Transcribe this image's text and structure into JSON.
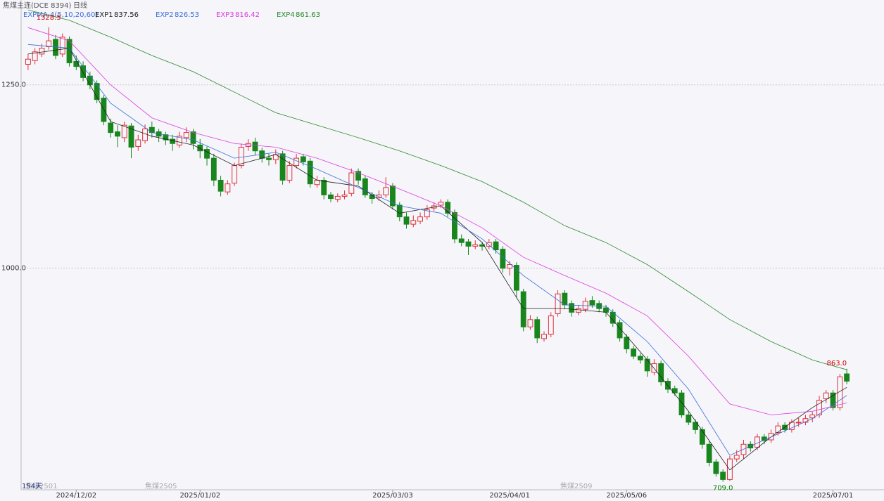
{
  "chart_data": {
    "type": "candlestick",
    "title": "焦煤主连(DCE 8394)",
    "period": "日线",
    "indicator": "EXPMA-4(5,10,20,60)",
    "up_color": "#e0303a",
    "down_color": "#18861c",
    "ylim": [
      698,
      1358
    ],
    "yticks": [
      {
        "value": 1250,
        "label": "1250.0"
      },
      {
        "value": 1000,
        "label": "1000.0"
      }
    ],
    "grid": true,
    "high_label": "1328.5",
    "low_label": "709.0",
    "last_high_label": "863.0",
    "contracts": [
      "焦煤2501",
      "焦煤2505",
      "焦煤2509"
    ],
    "day_count": "154天",
    "categories": [
      null,
      null,
      null,
      null,
      null,
      null,
      null,
      "2024/12/02",
      null,
      null,
      null,
      null,
      null,
      null,
      null,
      null,
      null,
      null,
      null,
      null,
      null,
      null,
      null,
      null,
      null,
      "2025/01/02",
      null,
      null,
      null,
      null,
      null,
      null,
      null,
      null,
      null,
      null,
      null,
      null,
      null,
      null,
      null,
      null,
      null,
      null,
      null,
      null,
      null,
      null,
      null,
      null,
      null,
      null,
      null,
      "2025/03/03",
      null,
      null,
      null,
      null,
      null,
      null,
      null,
      null,
      null,
      null,
      null,
      null,
      null,
      null,
      null,
      null,
      "2025/04/01",
      null,
      null,
      null,
      null,
      null,
      null,
      null,
      null,
      null,
      null,
      null,
      null,
      null,
      null,
      null,
      null,
      "2025/05/06",
      null,
      null,
      null,
      null,
      null,
      null,
      null,
      null,
      null,
      null,
      null,
      null,
      null,
      null,
      null,
      null,
      null,
      null,
      null,
      null,
      null,
      null,
      null,
      null,
      null,
      null,
      null,
      null,
      null,
      "2025/07/01",
      null,
      null
    ],
    "candles": [
      [
        1278,
        1292,
        1270,
        1285
      ],
      [
        1283,
        1300,
        1278,
        1295
      ],
      [
        1292,
        1306,
        1288,
        1300
      ],
      [
        1302,
        1328.5,
        1298,
        1310
      ],
      [
        1312,
        1318,
        1285,
        1290
      ],
      [
        1292,
        1320,
        1288,
        1315
      ],
      [
        1312,
        1316,
        1275,
        1280
      ],
      [
        1282,
        1290,
        1270,
        1275
      ],
      [
        1276,
        1282,
        1255,
        1260
      ],
      [
        1262,
        1268,
        1244,
        1250
      ],
      [
        1252,
        1256,
        1225,
        1230
      ],
      [
        1232,
        1236,
        1195,
        1200
      ],
      [
        1198,
        1204,
        1178,
        1185
      ],
      [
        1186,
        1195,
        1165,
        1180
      ],
      [
        1178,
        1200,
        1172,
        1195
      ],
      [
        1194,
        1198,
        1150,
        1165
      ],
      [
        1166,
        1182,
        1160,
        1175
      ],
      [
        1174,
        1196,
        1170,
        1190
      ],
      [
        1192,
        1200,
        1178,
        1185
      ],
      [
        1186,
        1190,
        1172,
        1180
      ],
      [
        1182,
        1186,
        1168,
        1175
      ],
      [
        1176,
        1182,
        1160,
        1170
      ],
      [
        1168,
        1186,
        1164,
        1180
      ],
      [
        1178,
        1192,
        1172,
        1185
      ],
      [
        1186,
        1190,
        1162,
        1170
      ],
      [
        1168,
        1176,
        1150,
        1160
      ],
      [
        1162,
        1166,
        1140,
        1150
      ],
      [
        1150,
        1156,
        1112,
        1120
      ],
      [
        1120,
        1126,
        1098,
        1105
      ],
      [
        1104,
        1120,
        1100,
        1115
      ],
      [
        1116,
        1144,
        1112,
        1140
      ],
      [
        1140,
        1170,
        1136,
        1165
      ],
      [
        1166,
        1176,
        1160,
        1170
      ],
      [
        1172,
        1178,
        1154,
        1160
      ],
      [
        1160,
        1164,
        1144,
        1150
      ],
      [
        1150,
        1156,
        1140,
        1148
      ],
      [
        1148,
        1162,
        1142,
        1155
      ],
      [
        1156,
        1160,
        1114,
        1120
      ],
      [
        1120,
        1146,
        1116,
        1140
      ],
      [
        1140,
        1156,
        1136,
        1150
      ],
      [
        1152,
        1156,
        1140,
        1145
      ],
      [
        1146,
        1150,
        1110,
        1115
      ],
      [
        1114,
        1126,
        1110,
        1120
      ],
      [
        1120,
        1124,
        1094,
        1100
      ],
      [
        1100,
        1104,
        1090,
        1095
      ],
      [
        1094,
        1102,
        1090,
        1098
      ],
      [
        1098,
        1106,
        1094,
        1100
      ],
      [
        1102,
        1136,
        1098,
        1130
      ],
      [
        1132,
        1136,
        1114,
        1120
      ],
      [
        1122,
        1126,
        1096,
        1100
      ],
      [
        1100,
        1104,
        1088,
        1095
      ],
      [
        1096,
        1106,
        1092,
        1100
      ],
      [
        1100,
        1124,
        1096,
        1110
      ],
      [
        1112,
        1116,
        1080,
        1085
      ],
      [
        1086,
        1090,
        1064,
        1070
      ],
      [
        1070,
        1076,
        1054,
        1060
      ],
      [
        1060,
        1072,
        1056,
        1065
      ],
      [
        1064,
        1076,
        1060,
        1070
      ],
      [
        1070,
        1086,
        1066,
        1080
      ],
      [
        1082,
        1090,
        1078,
        1085
      ],
      [
        1086,
        1094,
        1082,
        1090
      ],
      [
        1090,
        1094,
        1070,
        1075
      ],
      [
        1076,
        1080,
        1034,
        1040
      ],
      [
        1040,
        1046,
        1030,
        1035
      ],
      [
        1036,
        1040,
        1018,
        1030
      ],
      [
        1030,
        1038,
        1026,
        1032
      ],
      [
        1032,
        1036,
        1024,
        1030
      ],
      [
        1030,
        1040,
        1026,
        1035
      ],
      [
        1036,
        1040,
        1020,
        1025
      ],
      [
        1026,
        1030,
        994,
        1000
      ],
      [
        1000,
        1010,
        990,
        1005
      ],
      [
        1004,
        1008,
        960,
        970
      ],
      [
        968,
        972,
        914,
        920
      ],
      [
        920,
        936,
        916,
        930
      ],
      [
        930,
        934,
        898,
        905
      ],
      [
        904,
        914,
        900,
        910
      ],
      [
        910,
        940,
        906,
        935
      ],
      [
        938,
        970,
        934,
        965
      ],
      [
        966,
        970,
        944,
        950
      ],
      [
        952,
        956,
        934,
        940
      ],
      [
        940,
        950,
        936,
        945
      ],
      [
        944,
        960,
        940,
        955
      ],
      [
        956,
        962,
        946,
        950
      ],
      [
        952,
        956,
        940,
        945
      ],
      [
        946,
        950,
        934,
        940
      ],
      [
        940,
        944,
        920,
        925
      ],
      [
        926,
        930,
        900,
        905
      ],
      [
        906,
        910,
        884,
        890
      ],
      [
        890,
        894,
        876,
        880
      ],
      [
        880,
        884,
        870,
        875
      ],
      [
        876,
        880,
        852,
        860
      ],
      [
        858,
        876,
        854,
        870
      ],
      [
        870,
        874,
        840,
        845
      ],
      [
        846,
        850,
        830,
        835
      ],
      [
        836,
        840,
        826,
        830
      ],
      [
        830,
        834,
        796,
        800
      ],
      [
        800,
        804,
        786,
        790
      ],
      [
        790,
        794,
        774,
        780
      ],
      [
        780,
        784,
        754,
        760
      ],
      [
        760,
        764,
        730,
        735
      ],
      [
        736,
        740,
        716,
        720
      ],
      [
        722,
        726,
        709,
        712
      ],
      [
        712,
        744,
        710,
        740
      ],
      [
        740,
        752,
        736,
        745
      ],
      [
        746,
        766,
        740,
        760
      ],
      [
        760,
        764,
        750,
        755
      ],
      [
        756,
        774,
        752,
        770
      ],
      [
        770,
        774,
        760,
        765
      ],
      [
        766,
        780,
        762,
        775
      ],
      [
        776,
        790,
        772,
        785
      ],
      [
        786,
        790,
        776,
        780
      ],
      [
        780,
        794,
        776,
        790
      ],
      [
        790,
        796,
        784,
        790
      ],
      [
        790,
        800,
        786,
        795
      ],
      [
        796,
        804,
        790,
        800
      ],
      [
        800,
        826,
        796,
        820
      ],
      [
        822,
        834,
        816,
        830
      ],
      [
        830,
        834,
        806,
        810
      ],
      [
        810,
        856,
        806,
        852
      ],
      [
        856,
        863,
        842,
        846
      ]
    ],
    "series": [
      {
        "name": "EXP1",
        "color": "#222222",
        "x": [
          0,
          6,
          12,
          18,
          24,
          30,
          36,
          42,
          48,
          54,
          60,
          66,
          72,
          78,
          84,
          90,
          96,
          102,
          108,
          114,
          119
        ],
        "values": [
          1292,
          1300,
          1200,
          1180,
          1168,
          1140,
          1155,
          1120,
          1112,
          1075,
          1085,
          1035,
          945,
          945,
          940,
          875,
          805,
          725,
          770,
          810,
          837.56
        ]
      },
      {
        "name": "EXP2",
        "color": "#3a6fd8",
        "x": [
          0,
          6,
          12,
          18,
          24,
          30,
          36,
          42,
          48,
          54,
          60,
          66,
          72,
          78,
          84,
          90,
          96,
          102,
          108,
          114,
          119
        ],
        "values": [
          1305,
          1300,
          1225,
          1185,
          1175,
          1150,
          1158,
          1135,
          1110,
          1085,
          1075,
          1040,
          990,
          950,
          948,
          900,
          835,
          745,
          770,
          795,
          826.53
        ]
      },
      {
        "name": "EXP3",
        "color": "#e03ce0",
        "x": [
          0,
          6,
          12,
          18,
          24,
          30,
          36,
          42,
          48,
          54,
          60,
          66,
          72,
          78,
          84,
          90,
          96,
          102,
          108,
          114,
          119
        ],
        "values": [
          1328,
          1310,
          1250,
          1205,
          1185,
          1170,
          1165,
          1150,
          1130,
          1108,
          1085,
          1055,
          1015,
          990,
          966,
          935,
          880,
          815,
          800,
          805,
          816.42
        ]
      },
      {
        "name": "EXP4",
        "color": "#2a8a2a",
        "x": [
          0,
          6,
          12,
          18,
          24,
          30,
          36,
          42,
          48,
          54,
          60,
          66,
          72,
          78,
          84,
          90,
          96,
          102,
          108,
          114,
          119
        ],
        "values": [
          1352,
          1338,
          1315,
          1290,
          1268,
          1240,
          1212,
          1195,
          1178,
          1160,
          1140,
          1118,
          1090,
          1058,
          1035,
          1005,
          968,
          930,
          900,
          875,
          861.63
        ]
      }
    ]
  }
}
